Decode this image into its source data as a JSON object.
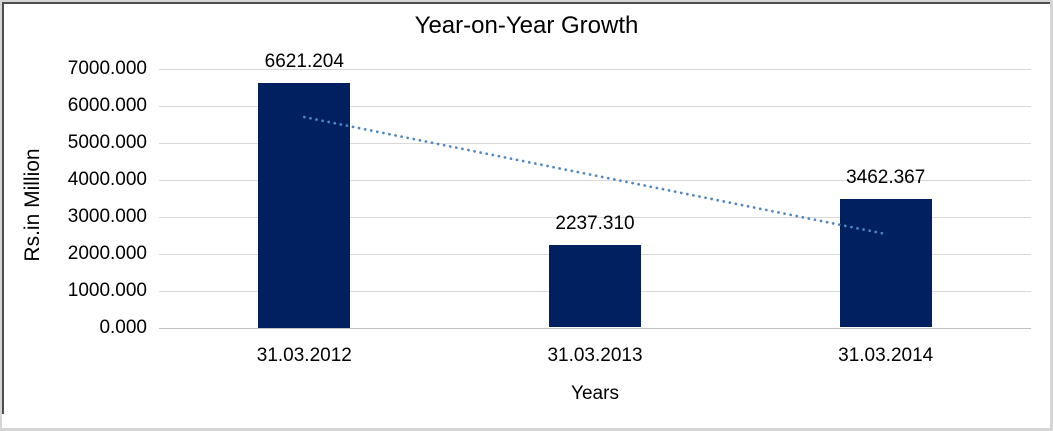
{
  "chart_data": {
    "type": "bar",
    "title": "Year-on-Year Growth",
    "categories": [
      "31.03.2012",
      "31.03.2013",
      "31.03.2014"
    ],
    "values": [
      6621.204,
      2237.31,
      3462.367
    ],
    "data_labels": [
      "6621.204",
      "2237.310",
      "3462.367"
    ],
    "xlabel": "Years",
    "ylabel": "Rs.in Million",
    "ylim": [
      0,
      7000
    ],
    "ytick_step": 1000,
    "ytick_labels": [
      "0.000",
      "1000.000",
      "2000.000",
      "3000.000",
      "4000.000",
      "5000.000",
      "6000.000",
      "7000.000"
    ],
    "grid": true,
    "legend": "none",
    "trendline": {
      "type": "linear",
      "line_style": "dotted",
      "start_value": 5686,
      "end_value": 2528
    },
    "colors": {
      "bar": "#002060",
      "trendline": "#4e87c5",
      "gridline": "#d9d9d9",
      "axis_line": "#c0c0c0",
      "text": "#000000"
    }
  }
}
